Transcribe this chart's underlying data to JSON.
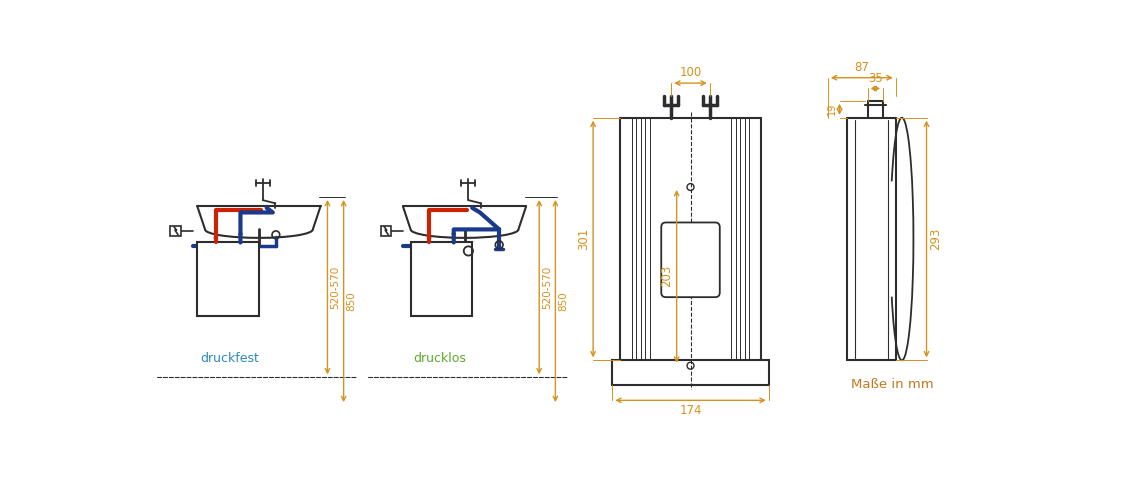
{
  "bg_color": "#ffffff",
  "dim_color": "#d4921e",
  "line_color": "#2d2d2d",
  "red_color": "#cc2200",
  "blue_color": "#1a3a8a",
  "label_druckfest": "druckfest",
  "label_drucklos": "drucklos",
  "label_mass": "Maße in mm",
  "dim_520_570": "520-570",
  "dim_850": "850",
  "dim_100": "100",
  "dim_174": "174",
  "dim_301": "301",
  "dim_203": "203",
  "dim_87": "87",
  "dim_35": "35",
  "dim_19": "19",
  "dim_293": "293"
}
